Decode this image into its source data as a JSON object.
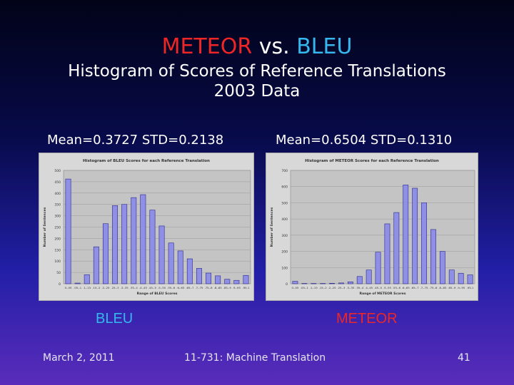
{
  "title": {
    "part1": "METEOR",
    "part2": "vs.",
    "part3": "BLEU"
  },
  "subtitle": {
    "line1": "Histogram of Scores of Reference Translations",
    "line2": "2003 Data"
  },
  "stats": {
    "left": "Mean=0.3727 STD=0.2138",
    "right": "Mean=0.6504 STD=0.1310"
  },
  "captions": {
    "left": "BLEU",
    "right": "METEOR"
  },
  "footer": {
    "date": "March 2, 2011",
    "course": "11-731: Machine Translation",
    "page": "41"
  },
  "colors": {
    "bar": "#8f8fe6",
    "bar_edge": "#2a2a8a",
    "plot_bg": "#c4c4c4",
    "chart_bg": "#d8d8d8"
  },
  "chart_data": [
    {
      "type": "bar",
      "title": "Histogram of BLEU Scores for each Reference Translation",
      "xlabel": "Range of BLEU Scores",
      "ylabel": "Number of Sentences",
      "ylim": [
        0,
        500
      ],
      "yticks": [
        0,
        50,
        100,
        150,
        200,
        250,
        300,
        350,
        400,
        450,
        500
      ],
      "grid": true,
      "categories": [
        "0-.05",
        ".05-.1",
        ".1-.15",
        ".15-.2",
        ".2-.25",
        ".25-.3",
        ".3-.35",
        ".35-.4",
        ".4-.45",
        ".45-.5",
        ".5-.55",
        ".55-.6",
        ".6-.65",
        ".65-.7",
        ".7-.75",
        ".75-.8",
        ".8-.85",
        ".85-.9",
        ".9-.95",
        ".95-1"
      ],
      "values": [
        462,
        3,
        40,
        163,
        265,
        345,
        350,
        380,
        393,
        325,
        255,
        180,
        145,
        110,
        68,
        47,
        35,
        20,
        15,
        37
      ]
    },
    {
      "type": "bar",
      "title": "Histogram of METEOR Scores for each Reference Translation",
      "xlabel": "Range of METEOR Scores",
      "ylabel": "Number of Sentences",
      "ylim": [
        0,
        700
      ],
      "yticks": [
        0,
        100,
        200,
        300,
        400,
        500,
        600,
        700
      ],
      "grid": true,
      "categories": [
        "0-.05",
        ".05-.1",
        ".1-.15",
        ".15-.2",
        ".2-.25",
        ".25-.3",
        ".3-.35",
        ".35-.4",
        ".4-.45",
        ".45-.5",
        ".5-.55",
        ".55-.6",
        ".6-.65",
        ".65-.7",
        ".7-.75",
        ".75-.8",
        ".8-.85",
        ".85-.9",
        ".9-.95",
        ".95-1"
      ],
      "values": [
        15,
        2,
        2,
        2,
        3,
        5,
        12,
        45,
        85,
        195,
        370,
        440,
        610,
        590,
        500,
        335,
        200,
        85,
        65,
        55
      ]
    }
  ]
}
